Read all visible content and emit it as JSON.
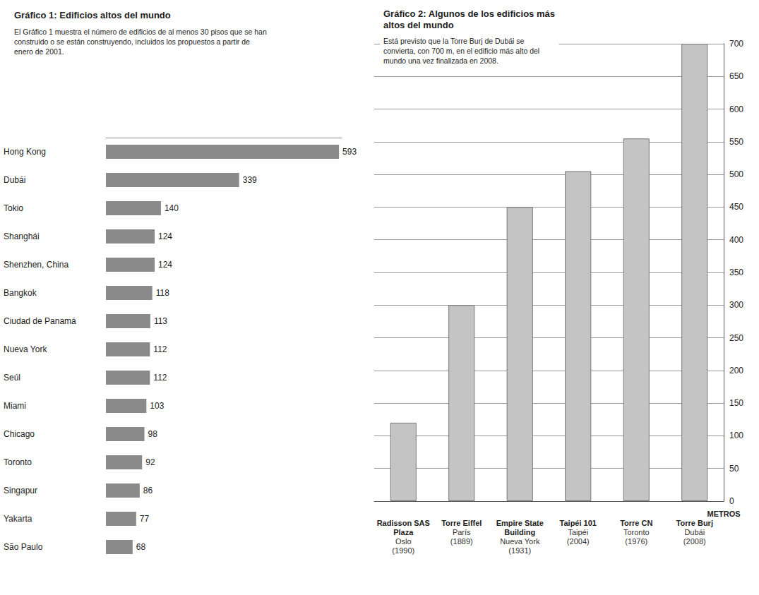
{
  "chart_data": [
    {
      "type": "bar",
      "title": "Gráfico 1: Edificios altos del mundo",
      "subtitle": "El Gráfico 1 muestra el número de edificios de al menos 30 pisos que se han construido o se están construyendo, incluidos los propuestos a partir de enero de 2001.",
      "categories": [
        "Hong Kong",
        "Dubái",
        "Tokio",
        "Shanghái",
        "Shenzhen, China",
        "Bangkok",
        "Ciudad de Panamá",
        "Nueva York",
        "Seúl",
        "Miami",
        "Chicago",
        "Toronto",
        "Singapur",
        "Yakarta",
        "São Paulo"
      ],
      "values": [
        593,
        339,
        140,
        124,
        124,
        118,
        113,
        112,
        112,
        103,
        98,
        92,
        86,
        77,
        68
      ],
      "color": "#8a8a8a",
      "orientation": "horizontal",
      "data_labels": true,
      "xlim": [
        0,
        600
      ],
      "tick_labels": "y",
      "grid": false
    },
    {
      "type": "bar",
      "title": "Gráfico 2: Algunos de los edificios más altos del mundo",
      "subtitle": "Está previsto que la Torre Burj de Dubái se convierta, con 700 m, en el edificio más alto del mundo una vez finalizada en 2008.",
      "categories": [
        "Radisson SAS Plaza",
        "Torre Eiffel",
        "Empire State Building",
        "Taipéi 101",
        "Torre CN",
        "Torre Burj"
      ],
      "locations": [
        "Oslo",
        "París",
        "Nueva York",
        "Taipéi",
        "Toronto",
        "Dubái"
      ],
      "years": [
        "(1990)",
        "(1889)",
        "(1931)",
        "(2004)",
        "(1976)",
        "(2008)"
      ],
      "values": [
        120,
        300,
        450,
        505,
        555,
        700
      ],
      "color": "#c4c4c4",
      "y_label": "METROS",
      "ylim": [
        0,
        700
      ],
      "yticks": [
        0,
        50,
        100,
        150,
        200,
        250,
        300,
        350,
        400,
        450,
        500,
        550,
        600,
        650,
        700
      ],
      "grid": true
    }
  ]
}
